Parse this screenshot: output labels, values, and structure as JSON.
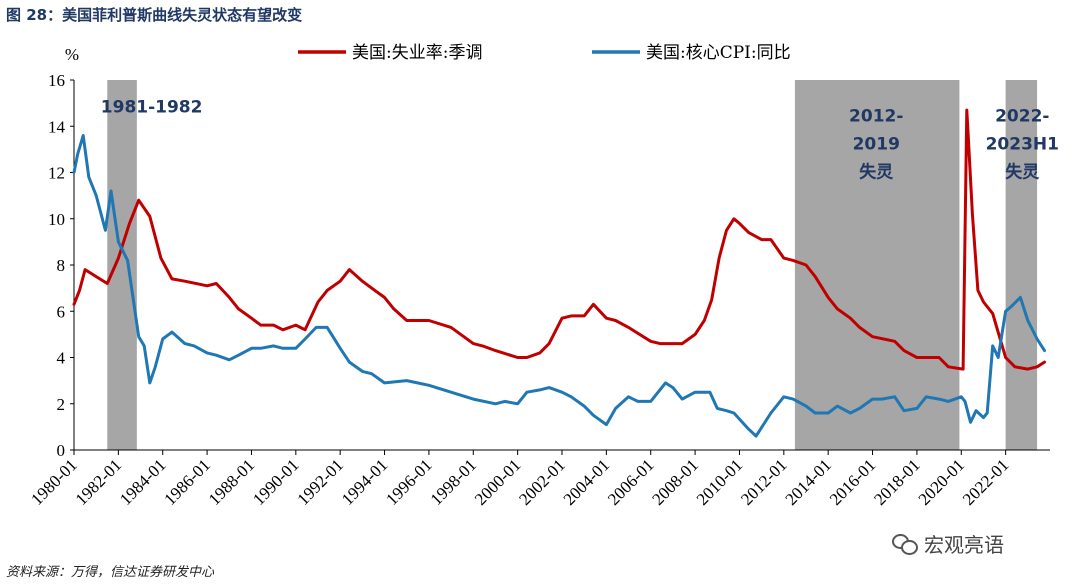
{
  "header": {
    "figure_title": "图 28：美国菲利普斯曲线失灵状态有望改变"
  },
  "footer": {
    "source": "资料来源：万得，信达证券研发中心",
    "watermark": "宏观亮语"
  },
  "chart_data": {
    "type": "line",
    "ylabel": "%",
    "ylim": [
      0,
      16
    ],
    "yticks": [
      0,
      2,
      4,
      6,
      8,
      10,
      12,
      14,
      16
    ],
    "xlim": [
      "1980-01",
      "2023-12"
    ],
    "xticks": [
      "1980-01",
      "1982-01",
      "1984-01",
      "1986-01",
      "1988-01",
      "1990-01",
      "1992-01",
      "1994-01",
      "1996-01",
      "1998-01",
      "2000-01",
      "2002-01",
      "2004-01",
      "2006-01",
      "2008-01",
      "2010-01",
      "2012-01",
      "2014-01",
      "2016-01",
      "2018-01",
      "2020-01",
      "2022-01"
    ],
    "legend_position": "top",
    "series": [
      {
        "name": "美国:失业率:季调",
        "color": "#c00000",
        "x": [
          "1980-01",
          "1980-04",
          "1980-07",
          "1981-01",
          "1981-07",
          "1982-01",
          "1982-07",
          "1982-12",
          "1983-06",
          "1983-12",
          "1984-06",
          "1985-01",
          "1986-01",
          "1986-06",
          "1987-01",
          "1987-06",
          "1988-01",
          "1988-06",
          "1989-01",
          "1989-06",
          "1990-01",
          "1990-06",
          "1991-01",
          "1991-06",
          "1992-01",
          "1992-06",
          "1993-01",
          "1993-06",
          "1994-01",
          "1994-06",
          "1995-01",
          "1995-06",
          "1996-01",
          "1997-01",
          "1998-01",
          "1998-06",
          "1999-01",
          "2000-01",
          "2000-06",
          "2001-01",
          "2001-06",
          "2002-01",
          "2002-06",
          "2003-01",
          "2003-06",
          "2004-01",
          "2004-06",
          "2005-01",
          "2006-01",
          "2006-06",
          "2007-01",
          "2007-06",
          "2008-01",
          "2008-06",
          "2008-10",
          "2009-02",
          "2009-06",
          "2009-10",
          "2010-01",
          "2010-06",
          "2011-01",
          "2011-06",
          "2012-01",
          "2012-06",
          "2013-01",
          "2013-06",
          "2014-01",
          "2014-06",
          "2015-01",
          "2015-06",
          "2016-01",
          "2017-01",
          "2017-06",
          "2018-01",
          "2018-06",
          "2019-01",
          "2019-06",
          "2020-02",
          "2020-04",
          "2020-05",
          "2020-07",
          "2020-10",
          "2021-01",
          "2021-06",
          "2022-01",
          "2022-06",
          "2023-01",
          "2023-06",
          "2023-10"
        ],
        "values": [
          6.3,
          6.9,
          7.8,
          7.5,
          7.2,
          8.3,
          9.8,
          10.8,
          10.1,
          8.3,
          7.4,
          7.3,
          7.1,
          7.2,
          6.6,
          6.1,
          5.7,
          5.4,
          5.4,
          5.2,
          5.4,
          5.2,
          6.4,
          6.9,
          7.3,
          7.8,
          7.3,
          7.0,
          6.6,
          6.1,
          5.6,
          5.6,
          5.6,
          5.3,
          4.6,
          4.5,
          4.3,
          4.0,
          4.0,
          4.2,
          4.6,
          5.7,
          5.8,
          5.8,
          6.3,
          5.7,
          5.6,
          5.3,
          4.7,
          4.6,
          4.6,
          4.6,
          5.0,
          5.6,
          6.5,
          8.3,
          9.5,
          10.0,
          9.8,
          9.4,
          9.1,
          9.1,
          8.3,
          8.2,
          8.0,
          7.5,
          6.6,
          6.1,
          5.7,
          5.3,
          4.9,
          4.7,
          4.3,
          4.0,
          4.0,
          4.0,
          3.6,
          3.5,
          14.7,
          13.2,
          10.2,
          6.9,
          6.4,
          5.9,
          4.0,
          3.6,
          3.5,
          3.6,
          3.8
        ]
      },
      {
        "name": "美国:核心CPI:同比",
        "color": "#1f77b4",
        "x": [
          "1980-01",
          "1980-03",
          "1980-06",
          "1980-09",
          "1981-01",
          "1981-06",
          "1981-09",
          "1982-01",
          "1982-06",
          "1982-12",
          "1983-03",
          "1983-06",
          "1983-09",
          "1984-01",
          "1984-06",
          "1985-01",
          "1985-06",
          "1986-01",
          "1986-06",
          "1987-01",
          "1987-06",
          "1988-01",
          "1988-06",
          "1989-01",
          "1989-06",
          "1990-01",
          "1990-06",
          "1990-12",
          "1991-06",
          "1992-01",
          "1992-06",
          "1993-01",
          "1993-06",
          "1994-01",
          "1995-01",
          "1996-01",
          "1997-01",
          "1998-01",
          "1999-01",
          "1999-06",
          "2000-01",
          "2000-06",
          "2001-01",
          "2001-06",
          "2002-01",
          "2002-06",
          "2003-01",
          "2003-06",
          "2004-01",
          "2004-06",
          "2005-01",
          "2005-06",
          "2006-01",
          "2006-09",
          "2007-01",
          "2007-06",
          "2008-01",
          "2008-09",
          "2009-01",
          "2009-06",
          "2009-10",
          "2010-06",
          "2010-10",
          "2011-06",
          "2012-01",
          "2012-06",
          "2013-01",
          "2013-06",
          "2014-01",
          "2014-06",
          "2015-01",
          "2015-06",
          "2016-01",
          "2016-06",
          "2017-01",
          "2017-06",
          "2018-01",
          "2018-06",
          "2019-01",
          "2019-06",
          "2020-01",
          "2020-03",
          "2020-06",
          "2020-09",
          "2021-01",
          "2021-03",
          "2021-06",
          "2021-09",
          "2022-01",
          "2022-04",
          "2022-09",
          "2023-01",
          "2023-06",
          "2023-10"
        ],
        "values": [
          12.0,
          12.8,
          13.6,
          11.8,
          11.0,
          9.5,
          11.2,
          9.0,
          8.2,
          4.9,
          4.5,
          2.9,
          3.6,
          4.8,
          5.1,
          4.6,
          4.5,
          4.2,
          4.1,
          3.9,
          4.1,
          4.4,
          4.4,
          4.5,
          4.4,
          4.4,
          4.8,
          5.3,
          5.3,
          4.4,
          3.8,
          3.4,
          3.3,
          2.9,
          3.0,
          2.8,
          2.5,
          2.2,
          2.0,
          2.1,
          2.0,
          2.5,
          2.6,
          2.7,
          2.5,
          2.3,
          1.9,
          1.5,
          1.1,
          1.8,
          2.3,
          2.1,
          2.1,
          2.9,
          2.7,
          2.2,
          2.5,
          2.5,
          1.8,
          1.7,
          1.6,
          0.9,
          0.6,
          1.6,
          2.3,
          2.2,
          1.9,
          1.6,
          1.6,
          1.9,
          1.6,
          1.8,
          2.2,
          2.2,
          2.3,
          1.7,
          1.8,
          2.3,
          2.2,
          2.1,
          2.3,
          2.1,
          1.2,
          1.7,
          1.4,
          1.6,
          4.5,
          4.0,
          6.0,
          6.2,
          6.6,
          5.6,
          4.8,
          4.3
        ]
      }
    ],
    "shaded_periods": [
      {
        "start": "1981-07",
        "end": "1982-11"
      },
      {
        "start": "2012-07",
        "end": "2019-12"
      },
      {
        "start": "2022-01",
        "end": "2023-06"
      }
    ],
    "annotations": [
      {
        "lines": [
          "1981-1982"
        ],
        "anchor": "1983-07",
        "y": 14.6
      },
      {
        "lines": [
          "2012-",
          "2019",
          "失灵"
        ],
        "anchor": "2016-03",
        "y": 14.2
      },
      {
        "lines": [
          "2022-",
          "2023H1",
          "失灵"
        ],
        "anchor": "2022-10",
        "y": 14.2
      }
    ]
  }
}
